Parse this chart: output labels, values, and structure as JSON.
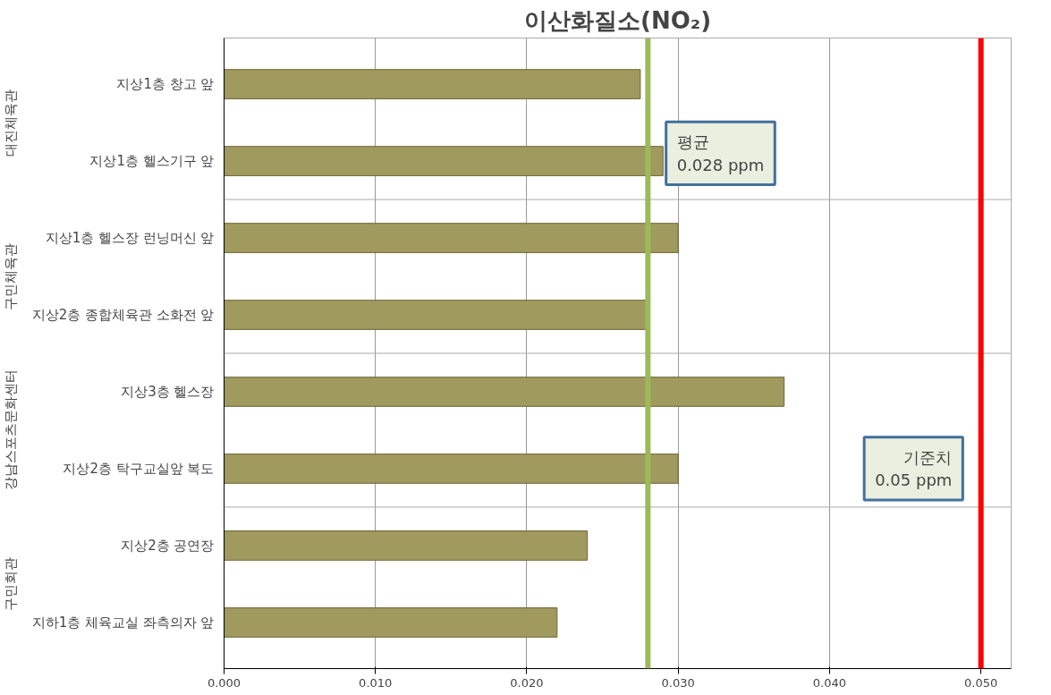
{
  "chart_data": {
    "type": "bar",
    "orientation": "horizontal",
    "title": "이산화질소(NO₂)",
    "categories": [
      "지상1층 창고 앞",
      "지상1층 헬스기구 앞",
      "지상1층 헬스장 런닝머신 앞",
      "지상2층 종합체육관 소화전 앞",
      "지상3층 헬스장",
      "지상2층 탁구교실앞 복도",
      "지상2층 공연장",
      "지하1층 체육교실 좌측의자 앞"
    ],
    "values": [
      0.0275,
      0.029,
      0.03,
      0.028,
      0.037,
      0.03,
      0.024,
      0.022
    ],
    "color": "#a09a5e",
    "xlim": [
      0,
      0.052
    ],
    "xticks": [
      {
        "value": 0,
        "label": "0.000"
      },
      {
        "value": 0.01,
        "label": "0.010"
      },
      {
        "value": 0.02,
        "label": "0.020"
      },
      {
        "value": 0.03,
        "label": "0.030"
      },
      {
        "value": 0.04,
        "label": "0.040"
      },
      {
        "value": 0.05,
        "label": "0.050"
      }
    ],
    "grid": "x",
    "annotations": [
      "대진체육관",
      "구민체육관",
      "강남스포츠문화센터",
      "구민회관"
    ],
    "ref_lines": [
      {
        "axis": "x",
        "value": 0.028,
        "label": "평균\n0.028 ppm",
        "color": "#9bbb59"
      },
      {
        "axis": "x",
        "value": 0.05,
        "label": "기준치\n0.05 ppm",
        "color": "#ff0000"
      }
    ]
  }
}
